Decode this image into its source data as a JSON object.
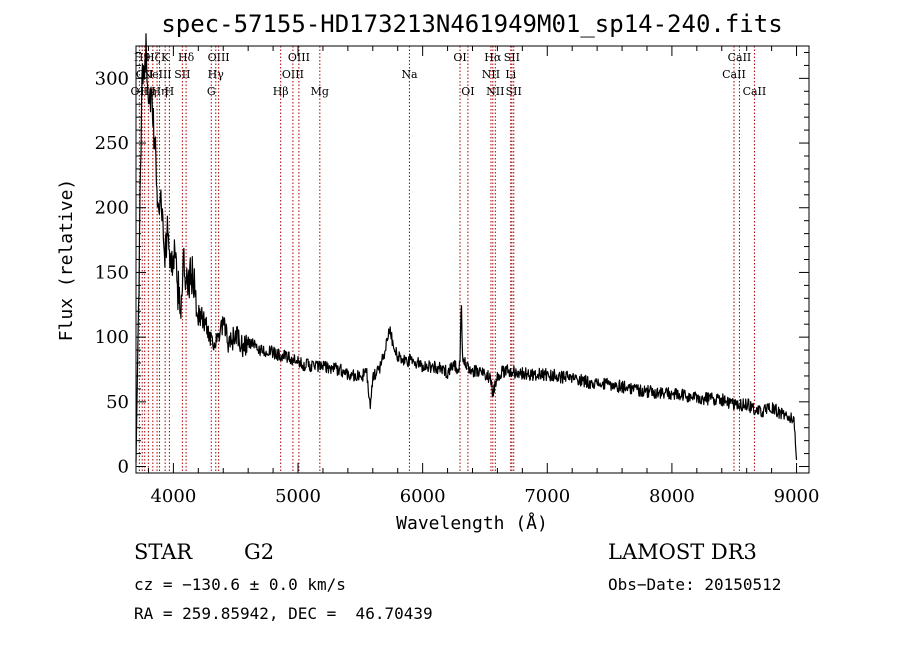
{
  "chart_data": {
    "type": "line",
    "title": "spec-57155-HD173213N461949M01_sp14-240.fits",
    "xlabel": "Wavelength (Å)",
    "ylabel": "Flux (relative)",
    "xlim": [
      3700,
      9100
    ],
    "ylim": [
      -5,
      325
    ],
    "xticks": [
      4000,
      5000,
      6000,
      7000,
      8000,
      9000
    ],
    "yticks": [
      0,
      50,
      100,
      150,
      200,
      250,
      300
    ],
    "grid": false,
    "line_color": "#000000",
    "marker_color": "#aa0000",
    "series": [
      {
        "x": [
          3700,
          3750,
          3780,
          3800,
          3820,
          3850,
          3880,
          3900,
          3930,
          3960,
          3980,
          4000,
          4030,
          4060,
          4080,
          4100,
          4150,
          4200,
          4250,
          4300,
          4350,
          4400,
          4450,
          4500,
          4550,
          4600,
          4700,
          4800,
          4900,
          5000,
          5100,
          5200,
          5300,
          5400,
          5500,
          5550,
          5580,
          5600,
          5650,
          5700,
          5730,
          5750,
          5800,
          5850,
          5900,
          5950,
          6000,
          6100,
          6200,
          6250,
          6280,
          6300,
          6310,
          6320,
          6350,
          6400,
          6450,
          6500,
          6550,
          6563,
          6600,
          6650,
          6700,
          6800,
          6900,
          7000,
          7200,
          7400,
          7600,
          7800,
          8000,
          8200,
          8400,
          8500,
          8600,
          8700,
          8800,
          8900,
          8950,
          8980,
          9000
        ],
        "y": [
          3,
          305,
          320,
          290,
          285,
          250,
          200,
          210,
          165,
          185,
          150,
          170,
          140,
          125,
          160,
          135,
          150,
          118,
          112,
          100,
          95,
          110,
          93,
          103,
          92,
          96,
          90,
          88,
          85,
          80,
          78,
          77,
          76,
          72,
          69,
          73,
          46,
          68,
          75,
          90,
          108,
          100,
          85,
          81,
          82,
          80,
          78,
          77,
          73,
          80,
          75,
          80,
          129,
          82,
          78,
          74,
          73,
          72,
          68,
          55,
          71,
          73,
          74,
          72,
          71,
          71,
          68,
          64,
          62,
          58,
          56,
          53,
          52,
          47,
          48,
          42,
          45,
          40,
          38,
          33,
          5
        ]
      }
    ],
    "markers": [
      {
        "x": 3727,
        "label": "OII",
        "row": 3
      },
      {
        "x": 3750,
        "label": "H9",
        "row": 1
      },
      {
        "x": 3770,
        "label": "OII",
        "row": 2
      },
      {
        "x": 3799,
        "label": "Hη",
        "row": 3
      },
      {
        "x": 3835,
        "label": "Hζ",
        "row": 1
      },
      {
        "x": 3869,
        "label": "NeIII",
        "row": 2
      },
      {
        "x": 3889,
        "label": "Hη",
        "row": 3
      },
      {
        "x": 3934,
        "label": "K",
        "row": 1
      },
      {
        "x": 3968,
        "label": "H",
        "row": 3
      },
      {
        "x": 4072,
        "label": "SII",
        "row": 2
      },
      {
        "x": 4102,
        "label": "Hδ",
        "row": 1
      },
      {
        "x": 4304,
        "label": "G",
        "row": 3
      },
      {
        "x": 4340,
        "label": "Hγ",
        "row": 2
      },
      {
        "x": 4363,
        "label": "OIII",
        "row": 1
      },
      {
        "x": 4861,
        "label": "Hβ",
        "row": 3
      },
      {
        "x": 4959,
        "label": "OIII",
        "row": 2
      },
      {
        "x": 5007,
        "label": "OIII",
        "row": 1
      },
      {
        "x": 5175,
        "label": "Mg",
        "row": 3
      },
      {
        "x": 5894,
        "label": "Na",
        "row": 2
      },
      {
        "x": 6300,
        "label": "OI",
        "row": 1
      },
      {
        "x": 6363,
        "label": "OI",
        "row": 3
      },
      {
        "x": 6548,
        "label": "NII",
        "row": 2
      },
      {
        "x": 6563,
        "label": "Hα",
        "row": 1
      },
      {
        "x": 6583,
        "label": "NII",
        "row": 3
      },
      {
        "x": 6707,
        "label": "Li",
        "row": 2
      },
      {
        "x": 6716,
        "label": "SII",
        "row": 1
      },
      {
        "x": 6731,
        "label": "SII",
        "row": 3
      },
      {
        "x": 8498,
        "label": "CaII",
        "row": 2
      },
      {
        "x": 8542,
        "label": "CaII",
        "row": 1
      },
      {
        "x": 8662,
        "label": "CaII",
        "row": 3
      }
    ]
  },
  "info": {
    "class_label": "STAR",
    "subclass": "G2",
    "survey": "LAMOST DR3",
    "redshift": "cz = −130.6 ± 0.0 km/s",
    "obs_date": "Obs−Date: 20150512",
    "coords": "RA = 259.85942, DEC =  46.70439"
  }
}
